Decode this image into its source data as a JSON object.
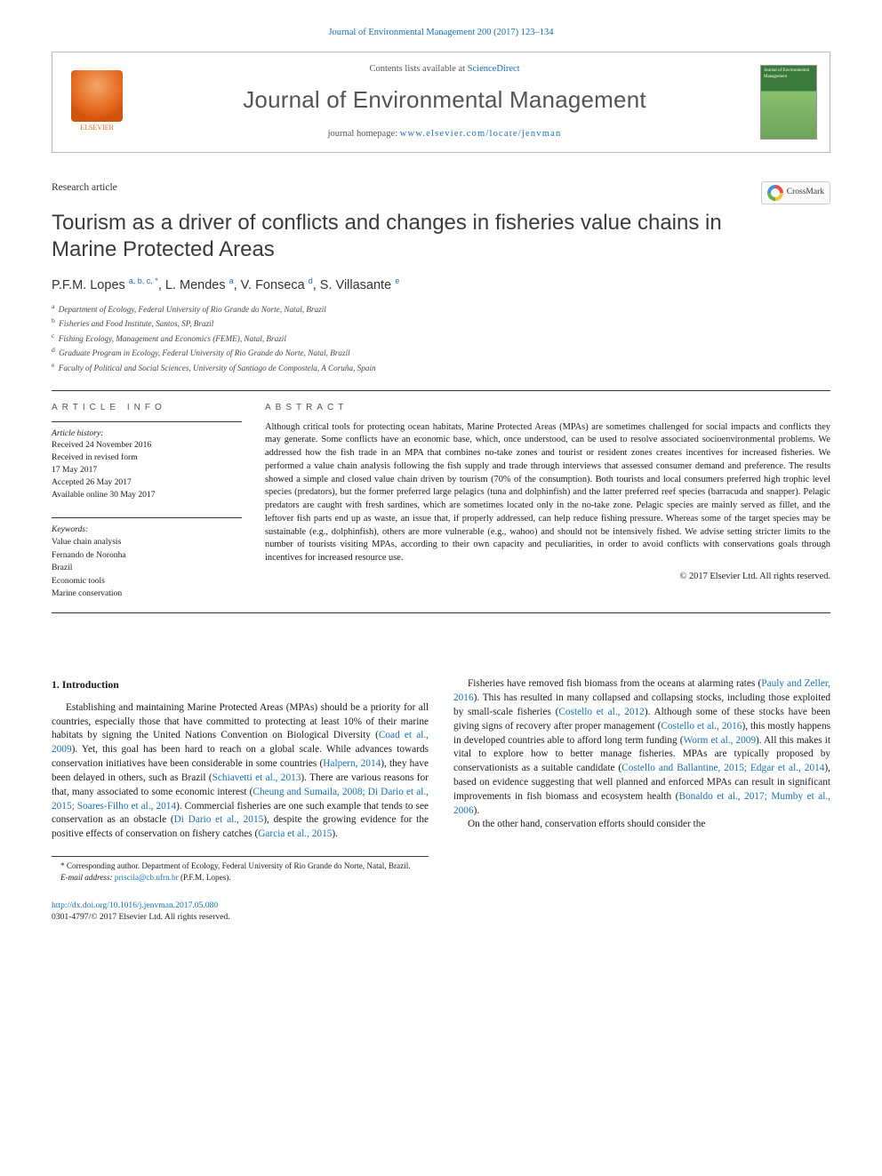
{
  "header": {
    "citation": "Journal of Environmental Management 200 (2017) 123–134",
    "contents_prefix": "Contents lists available at ",
    "contents_link": "ScienceDirect",
    "journal_name": "Journal of Environmental Management",
    "homepage_prefix": "journal homepage: ",
    "homepage_url": "www.elsevier.com/locate/jenvman",
    "publisher": "ELSEVIER",
    "cover_text": "Journal of Environmental Management"
  },
  "crossmark": "CrossMark",
  "article_type": "Research article",
  "title": "Tourism as a driver of conflicts and changes in fisheries value chains in Marine Protected Areas",
  "authors_html": "P.F.M. Lopes <sup>a, b, c, *</sup>, L. Mendes <sup>a</sup>, V. Fonseca <sup>d</sup>, S. Villasante <sup>e</sup>",
  "affiliations": [
    "a Department of Ecology, Federal University of Rio Grande do Norte, Natal, Brazil",
    "b Fisheries and Food Institute, Santos, SP, Brazil",
    "c Fishing Ecology, Management and Economics (FEME), Natal, Brazil",
    "d Graduate Program in Ecology, Federal University of Rio Grande do Norte, Natal, Brazil",
    "e Faculty of Political and Social Sciences, University of Santiago de Compostela, A Coruña, Spain"
  ],
  "info": {
    "head": "ARTICLE INFO",
    "history_label": "Article history:",
    "history_lines": [
      "Received 24 November 2016",
      "Received in revised form",
      "17 May 2017",
      "Accepted 26 May 2017",
      "Available online 30 May 2017"
    ],
    "keywords_label": "Keywords:",
    "keywords": [
      "Value chain analysis",
      "Fernando de Noronha",
      "Brazil",
      "Economic tools",
      "Marine conservation"
    ]
  },
  "abstract": {
    "head": "ABSTRACT",
    "text": "Although critical tools for protecting ocean habitats, Marine Protected Areas (MPAs) are sometimes challenged for social impacts and conflicts they may generate. Some conflicts have an economic base, which, once understood, can be used to resolve associated socioenvironmental problems. We addressed how the fish trade in an MPA that combines no-take zones and tourist or resident zones creates incentives for increased fisheries. We performed a value chain analysis following the fish supply and trade through interviews that assessed consumer demand and preference. The results showed a simple and closed value chain driven by tourism (70% of the consumption). Both tourists and local consumers preferred high trophic level species (predators), but the former preferred large pelagics (tuna and dolphinfish) and the latter preferred reef species (barracuda and snapper). Pelagic predators are caught with fresh sardines, which are sometimes located only in the no-take zone. Pelagic species are mainly served as fillet, and the leftover fish parts end up as waste, an issue that, if properly addressed, can help reduce fishing pressure. Whereas some of the target species may be sustainable (e.g., dolphinfish), others are more vulnerable (e.g., wahoo) and should not be intensively fished. We advise setting stricter limits to the number of tourists visiting MPAs, according to their own capacity and peculiarities, in order to avoid conflicts with conservations goals through incentives for increased resource use.",
    "copyright": "© 2017 Elsevier Ltd. All rights reserved."
  },
  "section1": {
    "heading": "1. Introduction",
    "p1_a": "Establishing and maintaining Marine Protected Areas (MPAs) should be a priority for all countries, especially those that have committed to protecting at least 10% of their marine habitats by signing the United Nations Convention on Biological Diversity (",
    "c1": "Coad et al., 2009",
    "p1_b": "). Yet, this goal has been hard to reach on a global scale. While advances towards conservation initiatives have been considerable in some countries (",
    "c2": "Halpern, 2014",
    "p1_c": "), they have been delayed in others, such as Brazil (",
    "c3": "Schiavetti et al., 2013",
    "p1_d": "). There are various reasons for that, many associated to some economic interest (",
    "c4": "Cheung and Sumaila, 2008; Di Dario et al., 2015; Soares-Filho et al., 2014",
    "p1_e": "). Commercial fisheries are one such example that tends to see conservation as an obstacle (",
    "c5": "Di Dario et al., 2015",
    "p1_f": "), despite the growing evidence for the positive effects of conservation on fishery catches (",
    "c6": "Garcia et al., 2015",
    "p1_g": ").",
    "p2_a": "Fisheries have removed fish biomass from the oceans at alarming rates (",
    "c7": "Pauly and Zeller, 2016",
    "p2_b": "). This has resulted in many collapsed and collapsing stocks, including those exploited by small-scale fisheries (",
    "c8": "Costello et al., 2012",
    "p2_c": "). Although some of these stocks have been giving signs of recovery after proper management (",
    "c9": "Costello et al., 2016",
    "p2_d": "), this mostly happens in developed countries able to afford long term funding (",
    "c10": "Worm et al., 2009",
    "p2_e": "). All this makes it vital to explore how to better manage fisheries. MPAs are typically proposed by conservationists as a suitable candidate (",
    "c11": "Costello and Ballantine, 2015; Edgar et al., 2014",
    "p2_f": "), based on evidence suggesting that well planned and enforced MPAs can result in significant improvements in fish biomass and ecosystem health (",
    "c12": "Bonaldo et al., 2017; Mumby et al., 2006",
    "p2_g": ").",
    "p3": "On the other hand, conservation efforts should consider the"
  },
  "footnote": {
    "corr": "* Corresponding author. Department of Ecology, Federal University of Rio Grande do Norte, Natal, Brazil.",
    "email_label": "E-mail address:",
    "email": "priscila@cb.ufrn.br",
    "email_suffix": "(P.F.M. Lopes)."
  },
  "bottom": {
    "doi": "http://dx.doi.org/10.1016/j.jenvman.2017.05.080",
    "issn": "0301-4797/© 2017 Elsevier Ltd. All rights reserved."
  },
  "colors": {
    "link": "#1a6fb5",
    "text": "#1a1a1a",
    "orange": "#e66a1f"
  }
}
